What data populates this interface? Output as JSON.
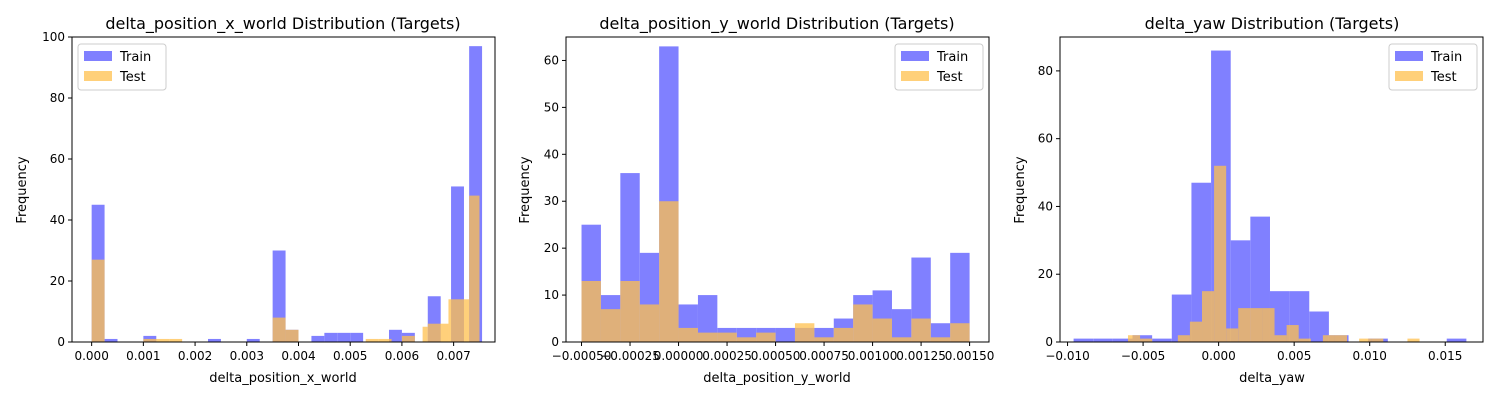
{
  "chart_data": [
    {
      "type": "bar",
      "title": "delta_position_x_world Distribution (Targets)",
      "xlabel": "delta_position_x_world",
      "ylabel": "Frequency",
      "xlim": [
        -0.00038,
        0.0078
      ],
      "ylim": [
        0,
        100
      ],
      "xticks": [
        0,
        0.001,
        0.002,
        0.003,
        0.004,
        0.005,
        0.006,
        0.007
      ],
      "xtick_labels": [
        "0.000",
        "0.001",
        "0.002",
        "0.003",
        "0.004",
        "0.005",
        "0.006",
        "0.007"
      ],
      "yticks": [
        0,
        20,
        40,
        60,
        80,
        100
      ],
      "ytick_labels": [
        "0",
        "20",
        "40",
        "60",
        "80",
        "100"
      ],
      "legend": {
        "position": "upper left",
        "entries": [
          "Train",
          "Test"
        ]
      },
      "series": [
        {
          "name": "Train",
          "color": "#8080ff",
          "bins": [
            [
              0.0,
              0.00025,
              45
            ],
            [
              0.00025,
              0.0005,
              1
            ],
            [
              0.0005,
              0.00075,
              0
            ],
            [
              0.00075,
              0.001,
              0
            ],
            [
              0.001,
              0.00125,
              2
            ],
            [
              0.00125,
              0.0015,
              0
            ],
            [
              0.0015,
              0.00175,
              0
            ],
            [
              0.00175,
              0.002,
              0
            ],
            [
              0.002,
              0.00225,
              0
            ],
            [
              0.00225,
              0.0025,
              1
            ],
            [
              0.0025,
              0.00275,
              0
            ],
            [
              0.00275,
              0.003,
              0
            ],
            [
              0.003,
              0.00325,
              1
            ],
            [
              0.00325,
              0.0035,
              0
            ],
            [
              0.0035,
              0.00375,
              30
            ],
            [
              0.00375,
              0.004,
              4
            ],
            [
              0.004,
              0.00425,
              0
            ],
            [
              0.00425,
              0.0045,
              2
            ],
            [
              0.0045,
              0.00475,
              3
            ],
            [
              0.00475,
              0.005,
              3
            ],
            [
              0.005,
              0.00525,
              3
            ],
            [
              0.00525,
              0.0055,
              0
            ],
            [
              0.0055,
              0.00575,
              0
            ],
            [
              0.00575,
              0.006,
              4
            ],
            [
              0.006,
              0.00625,
              3
            ],
            [
              0.00625,
              0.0065,
              0
            ],
            [
              0.0065,
              0.00675,
              15
            ],
            [
              0.00675,
              0.007,
              0
            ],
            [
              0.00695,
              0.0072,
              51
            ],
            [
              0.0072,
              0.00745,
              0
            ],
            [
              0.0073,
              0.00755,
              97
            ]
          ]
        },
        {
          "name": "Test",
          "color": "#ffc04d",
          "bins": [
            [
              0.0,
              0.00025,
              27
            ],
            [
              0.001,
              0.00125,
              1
            ],
            [
              0.00125,
              0.0015,
              1
            ],
            [
              0.0015,
              0.00175,
              1
            ],
            [
              0.0035,
              0.00375,
              8
            ],
            [
              0.00375,
              0.004,
              4
            ],
            [
              0.0053,
              0.00555,
              1
            ],
            [
              0.00555,
              0.0058,
              1
            ],
            [
              0.006,
              0.00625,
              2
            ],
            [
              0.0064,
              0.0065,
              5
            ],
            [
              0.0065,
              0.0069,
              6
            ],
            [
              0.0069,
              0.0073,
              14
            ],
            [
              0.0073,
              0.0075,
              48
            ]
          ]
        }
      ]
    },
    {
      "type": "bar",
      "title": "delta_position_y_world Distribution (Targets)",
      "xlabel": "delta_position_y_world",
      "ylabel": "Frequency",
      "xlim": [
        -0.00058,
        0.0016
      ],
      "ylim": [
        0,
        65
      ],
      "xticks": [
        -0.0005,
        -0.00025,
        0,
        0.00025,
        0.0005,
        0.00075,
        0.001,
        0.00125,
        0.0015
      ],
      "xtick_labels": [
        "−0.00050",
        "−0.00025",
        "0.00000",
        "0.00025",
        "0.00050",
        "0.00075",
        "0.00100",
        "0.00125",
        "0.00150"
      ],
      "yticks": [
        0,
        10,
        20,
        30,
        40,
        50,
        60
      ],
      "ytick_labels": [
        "0",
        "10",
        "20",
        "30",
        "40",
        "50",
        "60"
      ],
      "legend": {
        "position": "upper right",
        "entries": [
          "Train",
          "Test"
        ]
      },
      "series": [
        {
          "name": "Train",
          "color": "#8080ff",
          "bins": [
            [
              -0.0005,
              -0.0004,
              25
            ],
            [
              -0.0004,
              -0.0003,
              10
            ],
            [
              -0.0003,
              -0.0002,
              36
            ],
            [
              -0.0002,
              -0.0001,
              19
            ],
            [
              -0.0001,
              0.0,
              63
            ],
            [
              0.0,
              0.0001,
              8
            ],
            [
              0.0001,
              0.0002,
              10
            ],
            [
              0.0002,
              0.0003,
              3
            ],
            [
              0.0003,
              0.0004,
              3
            ],
            [
              0.0004,
              0.0005,
              3
            ],
            [
              0.0005,
              0.0006,
              3
            ],
            [
              0.0006,
              0.0007,
              3
            ],
            [
              0.0007,
              0.0008,
              3
            ],
            [
              0.0008,
              0.0009,
              5
            ],
            [
              0.0009,
              0.001,
              10
            ],
            [
              0.001,
              0.0011,
              11
            ],
            [
              0.0011,
              0.0012,
              7
            ],
            [
              0.0012,
              0.0013,
              18
            ],
            [
              0.0013,
              0.0014,
              4
            ],
            [
              0.0014,
              0.0015,
              19
            ]
          ]
        },
        {
          "name": "Test",
          "color": "#ffc04d",
          "bins": [
            [
              -0.0005,
              -0.0004,
              13
            ],
            [
              -0.0004,
              -0.0003,
              7
            ],
            [
              -0.0003,
              -0.0002,
              13
            ],
            [
              -0.0002,
              -0.0001,
              8
            ],
            [
              -0.0001,
              0.0,
              30
            ],
            [
              0.0,
              0.0001,
              3
            ],
            [
              0.0001,
              0.0002,
              2
            ],
            [
              0.0002,
              0.0003,
              2
            ],
            [
              0.0003,
              0.0004,
              1
            ],
            [
              0.0004,
              0.0005,
              2
            ],
            [
              0.0005,
              0.0006,
              0
            ],
            [
              0.0006,
              0.0007,
              4
            ],
            [
              0.0007,
              0.0008,
              1
            ],
            [
              0.0008,
              0.0009,
              3
            ],
            [
              0.0009,
              0.001,
              8
            ],
            [
              0.001,
              0.0011,
              5
            ],
            [
              0.0011,
              0.0012,
              1
            ],
            [
              0.0012,
              0.0013,
              5
            ],
            [
              0.0013,
              0.0014,
              1
            ],
            [
              0.0014,
              0.0015,
              4
            ]
          ]
        }
      ]
    },
    {
      "type": "bar",
      "title": "delta_yaw Distribution (Targets)",
      "xlabel": "delta_yaw",
      "ylabel": "Frequency",
      "xlim": [
        -0.0105,
        0.0175
      ],
      "ylim": [
        0,
        90
      ],
      "xticks": [
        -0.01,
        -0.005,
        0,
        0.005,
        0.01,
        0.015
      ],
      "xtick_labels": [
        "−0.010",
        "−0.005",
        "0.000",
        "0.005",
        "0.010",
        "0.015"
      ],
      "yticks": [
        0,
        20,
        40,
        60,
        80
      ],
      "ytick_labels": [
        "0",
        "20",
        "40",
        "60",
        "80"
      ],
      "legend": {
        "position": "upper right",
        "entries": [
          "Train",
          "Test"
        ]
      },
      "series": [
        {
          "name": "Train",
          "color": "#8080ff",
          "bins": [
            [
              -0.0096,
              -0.0083,
              1
            ],
            [
              -0.0083,
              -0.007,
              1
            ],
            [
              -0.007,
              -0.0057,
              1
            ],
            [
              -0.0057,
              -0.0044,
              2
            ],
            [
              -0.0044,
              -0.0031,
              1
            ],
            [
              -0.0031,
              -0.0018,
              14
            ],
            [
              -0.0018,
              -0.0005,
              47
            ],
            [
              -0.0005,
              0.0008,
              86
            ],
            [
              0.0008,
              0.0021,
              30
            ],
            [
              0.0021,
              0.0034,
              37
            ],
            [
              0.0034,
              0.0047,
              15
            ],
            [
              0.0047,
              0.006,
              15
            ],
            [
              0.006,
              0.0073,
              9
            ],
            [
              0.0073,
              0.0086,
              2
            ],
            [
              0.0086,
              0.0099,
              0
            ],
            [
              0.0099,
              0.0112,
              1
            ],
            [
              0.0112,
              0.0125,
              0
            ],
            [
              0.0125,
              0.0138,
              0
            ],
            [
              0.0138,
              0.0151,
              0
            ],
            [
              0.0151,
              0.0164,
              1
            ]
          ]
        },
        {
          "name": "Test",
          "color": "#ffc04d",
          "bins": [
            [
              -0.006,
              -0.0052,
              2
            ],
            [
              -0.0052,
              -0.0044,
              1
            ],
            [
              -0.0027,
              -0.0019,
              2
            ],
            [
              -0.0019,
              -0.0011,
              6
            ],
            [
              -0.0011,
              -0.0003,
              15
            ],
            [
              -0.0003,
              0.0005,
              52
            ],
            [
              0.0005,
              0.0013,
              4
            ],
            [
              0.0013,
              0.0021,
              10
            ],
            [
              0.0021,
              0.0029,
              10
            ],
            [
              0.0029,
              0.0037,
              10
            ],
            [
              0.0037,
              0.0045,
              2
            ],
            [
              0.0045,
              0.0053,
              5
            ],
            [
              0.0053,
              0.0061,
              1
            ],
            [
              0.0061,
              0.0069,
              0
            ],
            [
              0.0069,
              0.0077,
              2
            ],
            [
              0.0077,
              0.0085,
              2
            ],
            [
              0.0093,
              0.0101,
              1
            ],
            [
              0.0101,
              0.0109,
              1
            ],
            [
              0.0125,
              0.0133,
              1
            ]
          ]
        }
      ]
    }
  ]
}
